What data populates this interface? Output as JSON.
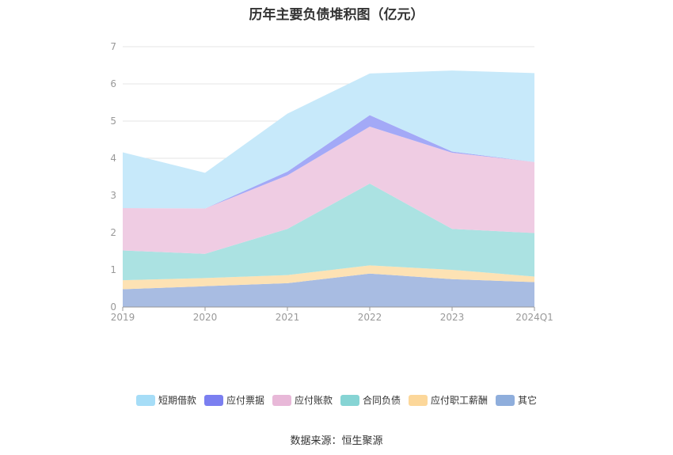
{
  "chart_data": {
    "type": "area",
    "stacked": true,
    "title": "历年主要负债堆积图（亿元）",
    "x": [
      "2019",
      "2020",
      "2021",
      "2022",
      "2023",
      "2024Q1"
    ],
    "ylim": [
      0,
      7
    ],
    "yticks": [
      0,
      1,
      2,
      3,
      4,
      5,
      6,
      7
    ],
    "grid": true,
    "legend_position": "bottom",
    "series": [
      {
        "name": "其它",
        "color": "#A8BCE2",
        "values": [
          0.48,
          0.56,
          0.64,
          0.9,
          0.75,
          0.67
        ]
      },
      {
        "name": "应付职工薪酬",
        "color": "#FDE2B4",
        "values": [
          0.24,
          0.22,
          0.22,
          0.22,
          0.25,
          0.15
        ]
      },
      {
        "name": "合同负债",
        "color": "#ABE2E2",
        "values": [
          0.8,
          0.65,
          1.24,
          2.2,
          1.1,
          1.17
        ]
      },
      {
        "name": "应付账款",
        "color": "#EFCCE3",
        "values": [
          1.14,
          1.22,
          1.44,
          1.53,
          2.05,
          1.91
        ]
      },
      {
        "name": "应付票据",
        "color": "#A3A9F7",
        "values": [
          0.0,
          0.0,
          0.1,
          0.31,
          0.03,
          0.0
        ]
      },
      {
        "name": "短期借款",
        "color": "#C7E9FA",
        "values": [
          1.5,
          0.96,
          1.56,
          1.12,
          2.18,
          2.39
        ]
      }
    ],
    "legend_order": [
      "短期借款",
      "应付票据",
      "应付账款",
      "合同负债",
      "应付职工薪酬",
      "其它"
    ],
    "legend_colors": {
      "短期借款": "#A6DDF7",
      "应付票据": "#7B7FF0",
      "应付账款": "#E8B8D8",
      "合同负债": "#86D4D4",
      "应付职工薪酬": "#FCD79A",
      "其它": "#8FAEDC"
    }
  },
  "source_text": "数据来源：恒生聚源"
}
